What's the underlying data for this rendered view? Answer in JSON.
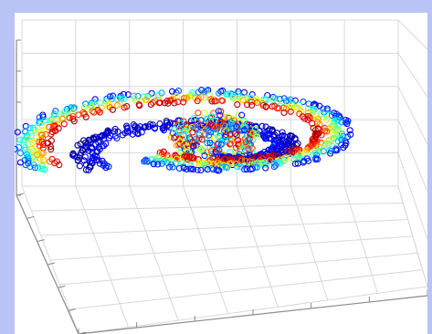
{
  "chart_data": {
    "type": "scatter",
    "projection": "3d",
    "title": "",
    "xlabel": "",
    "ylabel": "",
    "zlabel": "",
    "grid": true,
    "marker": "open-circle",
    "colormap": "jet",
    "colormap_colors": [
      "#00008f",
      "#0000ff",
      "#00ffff",
      "#ffff00",
      "#ff0000",
      "#800000"
    ],
    "series": [
      {
        "shape": "spiral-arm",
        "center": [
          0,
          0
        ],
        "turns": 0.95,
        "radius_range": [
          2.2,
          4.6
        ],
        "band_width": 0.5,
        "z_range": [
          0.6,
          1.0
        ],
        "color_range": [
          0.95,
          0.15
        ]
      },
      {
        "shape": "spiral-arm",
        "center": [
          0,
          0
        ],
        "turns": 0.7,
        "radius_range": [
          1.4,
          3.2
        ],
        "band_width": 0.35,
        "z_range": [
          0.3,
          0.7
        ],
        "color_range": [
          0.2,
          0.05
        ]
      },
      {
        "shape": "cluster",
        "center": [
          0.2,
          0.3
        ],
        "spread": 1.0,
        "z_range": [
          0.4,
          0.9
        ],
        "color_range": [
          0.2,
          0.9
        ]
      }
    ],
    "background_panel_color": "#b9c3f5",
    "plot_background_color": "#ffffff",
    "grid_color": "#d8d8d8",
    "axis_color": "#8a8a8a"
  }
}
